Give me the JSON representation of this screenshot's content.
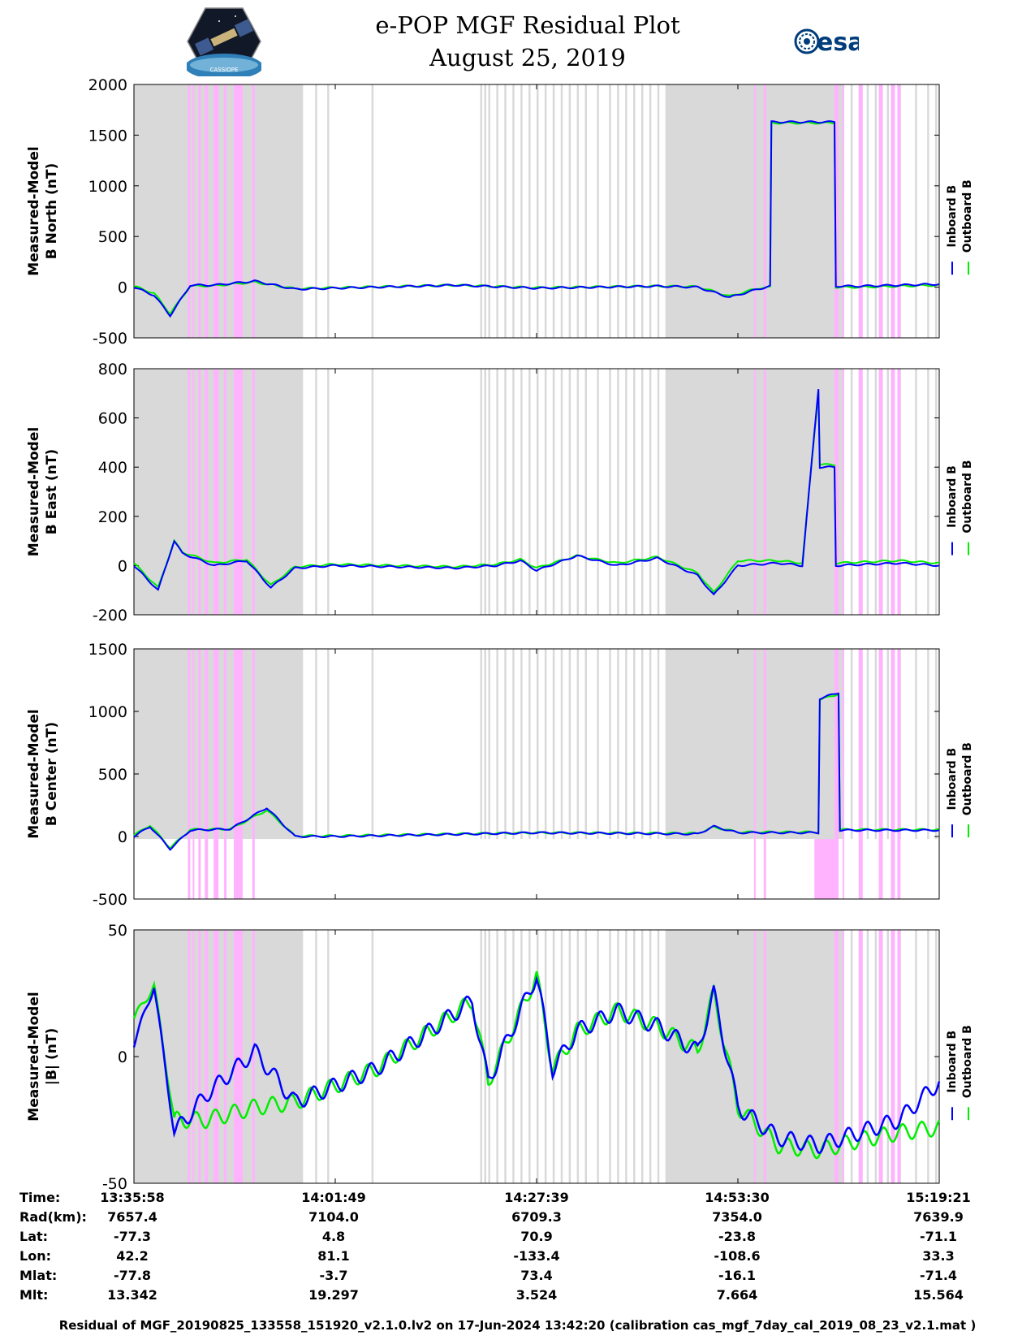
{
  "header": {
    "title": "e-POP MGF Residual Plot",
    "date": "August 25, 2019",
    "logo_left": "CASSIOPE",
    "logo_right": "esa"
  },
  "colors": {
    "inboard": "#0000ff",
    "outboard": "#00ee00",
    "shade_gray": "#d9d9d9",
    "shade_pink": "#ffb3ff"
  },
  "chart_data": [
    {
      "type": "line",
      "title": "",
      "ylabel": [
        "Measured-Model",
        "B North (nT)"
      ],
      "ylim": [
        -500,
        2000
      ],
      "yticks": [
        "2000",
        "1500",
        "1000",
        "500",
        "0",
        "-500"
      ],
      "legend": [
        "Inboard B",
        "Outboard B"
      ],
      "x": [
        0,
        0.025,
        0.045,
        0.07,
        0.1,
        0.15,
        0.2,
        0.25,
        0.4,
        0.5,
        0.65,
        0.7,
        0.74,
        0.775,
        0.79,
        0.79,
        0.87,
        0.87,
        0.9,
        1.0
      ],
      "series": [
        {
          "name": "Inboard B",
          "values": [
            0,
            -80,
            -280,
            20,
            20,
            60,
            -20,
            -10,
            20,
            -10,
            10,
            0,
            -100,
            -20,
            10,
            1630,
            1630,
            10,
            10,
            30
          ]
        },
        {
          "name": "Outboard B",
          "values": [
            10,
            -60,
            -260,
            10,
            15,
            50,
            -15,
            -5,
            20,
            -5,
            10,
            5,
            -90,
            -10,
            0,
            1620,
            1620,
            0,
            0,
            20
          ]
        }
      ]
    },
    {
      "type": "line",
      "title": "",
      "ylabel": [
        "Measured-Model",
        "B East (nT)"
      ],
      "ylim": [
        -200,
        800
      ],
      "yticks": [
        "800",
        "600",
        "400",
        "200",
        "0",
        "-200"
      ],
      "legend": [
        "Inboard B",
        "Outboard B"
      ],
      "x": [
        0,
        0.03,
        0.05,
        0.06,
        0.1,
        0.14,
        0.17,
        0.2,
        0.25,
        0.4,
        0.45,
        0.48,
        0.5,
        0.55,
        0.6,
        0.65,
        0.7,
        0.72,
        0.75,
        0.8,
        0.83,
        0.85,
        0.85,
        0.87,
        0.87,
        0.95,
        1.0
      ],
      "series": [
        {
          "name": "Inboard B",
          "values": [
            0,
            -100,
            100,
            50,
            0,
            20,
            -90,
            -10,
            0,
            -10,
            0,
            20,
            -20,
            40,
            0,
            30,
            -40,
            -120,
            0,
            10,
            0,
            720,
            400,
            400,
            0,
            10,
            0
          ]
        },
        {
          "name": "Outboard B",
          "values": [
            10,
            -90,
            100,
            55,
            10,
            25,
            -80,
            -5,
            5,
            -5,
            5,
            25,
            -10,
            40,
            10,
            35,
            -30,
            -110,
            20,
            20,
            10,
            710,
            410,
            410,
            10,
            20,
            10
          ]
        }
      ]
    },
    {
      "type": "line",
      "title": "",
      "ylabel": [
        "Measured-Model",
        "B Center (nT)"
      ],
      "ylim": [
        -500,
        1500
      ],
      "yticks": [
        "1500",
        "1000",
        "500",
        "0",
        "-500"
      ],
      "legend": [
        "Inboard B",
        "Outboard B"
      ],
      "x": [
        0,
        0.02,
        0.045,
        0.07,
        0.12,
        0.165,
        0.2,
        0.25,
        0.5,
        0.7,
        0.72,
        0.75,
        0.85,
        0.85,
        0.875,
        0.875,
        0.95,
        1.0
      ],
      "series": [
        {
          "name": "Inboard B",
          "values": [
            0,
            80,
            -100,
            50,
            60,
            230,
            0,
            0,
            30,
            20,
            80,
            30,
            30,
            1100,
            1150,
            50,
            50,
            50
          ]
        },
        {
          "name": "Outboard B",
          "values": [
            10,
            90,
            -90,
            55,
            60,
            210,
            5,
            5,
            30,
            25,
            75,
            35,
            35,
            1090,
            1140,
            55,
            55,
            55
          ]
        }
      ]
    },
    {
      "type": "line",
      "title": "",
      "ylabel": [
        "Measured-Model",
        "|B| (nT)"
      ],
      "ylim": [
        -50,
        50
      ],
      "yticks": [
        "50",
        "0",
        "-50"
      ],
      "legend": [
        "Inboard B",
        "Outboard B"
      ],
      "x": [
        0,
        0.025,
        0.05,
        0.09,
        0.15,
        0.2,
        0.3,
        0.42,
        0.44,
        0.5,
        0.52,
        0.55,
        0.6,
        0.65,
        0.7,
        0.72,
        0.75,
        0.8,
        0.85,
        0.9,
        0.95,
        1.0
      ],
      "series": [
        {
          "name": "Inboard B",
          "values": [
            5,
            28,
            -30,
            -15,
            2,
            -18,
            -5,
            22,
            -10,
            32,
            -5,
            10,
            18,
            12,
            2,
            25,
            -20,
            -32,
            -35,
            -30,
            -25,
            -10
          ]
        },
        {
          "name": "Outboard B",
          "values": [
            15,
            28,
            -25,
            -25,
            -20,
            -18,
            -5,
            22,
            -10,
            32,
            -5,
            10,
            18,
            12,
            2,
            25,
            -20,
            -35,
            -37,
            -33,
            -30,
            -28
          ]
        }
      ]
    }
  ],
  "info_table": {
    "labels": [
      "Time:",
      "Rad(km):",
      "Lat:",
      "Lon:",
      "Mlat:",
      "Mlt:"
    ],
    "columns": [
      [
        "13:35:58",
        "7657.4",
        "-77.3",
        "42.2",
        "-77.8",
        "13.342"
      ],
      [
        "14:01:49",
        "7104.0",
        "4.8",
        "81.1",
        "-3.7",
        "19.297"
      ],
      [
        "14:27:39",
        "6709.3",
        "70.9",
        "-133.4",
        "73.4",
        "3.524"
      ],
      [
        "14:53:30",
        "7354.0",
        "-23.8",
        "-108.6",
        "-16.1",
        "7.664"
      ],
      [
        "15:19:21",
        "7639.9",
        "-71.1",
        "33.3",
        "-71.4",
        "15.564"
      ]
    ]
  },
  "footer": "Residual of MGF_20190825_133558_151920_v2.1.0.lv2 on 17-Jun-2024 13:42:20 (calibration cas_mgf_7day_cal_2019_08_23_v2.1.mat )"
}
